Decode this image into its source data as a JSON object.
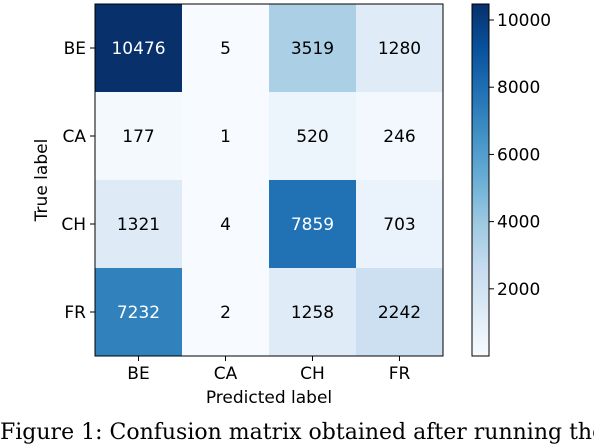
{
  "chart_data": {
    "type": "heatmap",
    "xlabel": "Predicted label",
    "ylabel": "True label",
    "x_categories": [
      "BE",
      "CA",
      "CH",
      "FR"
    ],
    "y_categories": [
      "BE",
      "CA",
      "CH",
      "FR"
    ],
    "values": [
      [
        10476,
        5,
        3519,
        1280
      ],
      [
        177,
        1,
        520,
        246
      ],
      [
        1321,
        4,
        7859,
        703
      ],
      [
        7232,
        2,
        1258,
        2242
      ]
    ],
    "colormap": "Blues",
    "vmin": 1,
    "vmax": 10476,
    "colorbar_ticks": [
      2000,
      4000,
      6000,
      8000,
      10000
    ],
    "colors": {
      "low": "#f7fbff",
      "high": "#08306b"
    }
  },
  "caption": "Figure 1: Confusion matrix obtained after running the"
}
